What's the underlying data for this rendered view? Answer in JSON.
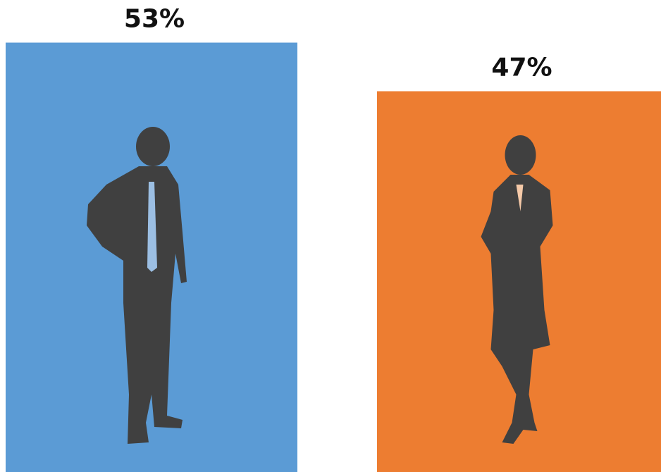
{
  "chart_data": {
    "type": "bar",
    "values": [
      53,
      47
    ],
    "value_labels": [
      "53%",
      "47%"
    ],
    "colors": [
      "#5b9bd5",
      "#ed7d31"
    ]
  }
}
